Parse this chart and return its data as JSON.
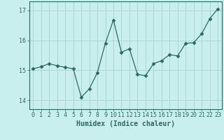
{
  "x": [
    0,
    1,
    2,
    3,
    4,
    5,
    6,
    7,
    8,
    9,
    10,
    11,
    12,
    13,
    14,
    15,
    16,
    17,
    18,
    19,
    20,
    21,
    22,
    23
  ],
  "y": [
    15.05,
    15.12,
    15.22,
    15.15,
    15.1,
    15.05,
    14.1,
    14.38,
    14.92,
    15.9,
    16.68,
    15.6,
    15.72,
    14.86,
    14.82,
    15.22,
    15.32,
    15.52,
    15.48,
    15.9,
    15.92,
    16.22,
    16.72,
    17.05
  ],
  "line_color": "#2e6b5e",
  "marker": "D",
  "marker_size": 2.5,
  "bg_color": "#c8eeee",
  "grid_color": "#aed4d4",
  "xlabel": "Humidex (Indice chaleur)",
  "ylim": [
    13.7,
    17.3
  ],
  "xlim": [
    -0.5,
    23.5
  ],
  "yticks": [
    14,
    15,
    16,
    17
  ],
  "xticks": [
    0,
    1,
    2,
    3,
    4,
    5,
    6,
    7,
    8,
    9,
    10,
    11,
    12,
    13,
    14,
    15,
    16,
    17,
    18,
    19,
    20,
    21,
    22,
    23
  ],
  "tick_label_fontsize": 6.0,
  "xlabel_fontsize": 7.0
}
